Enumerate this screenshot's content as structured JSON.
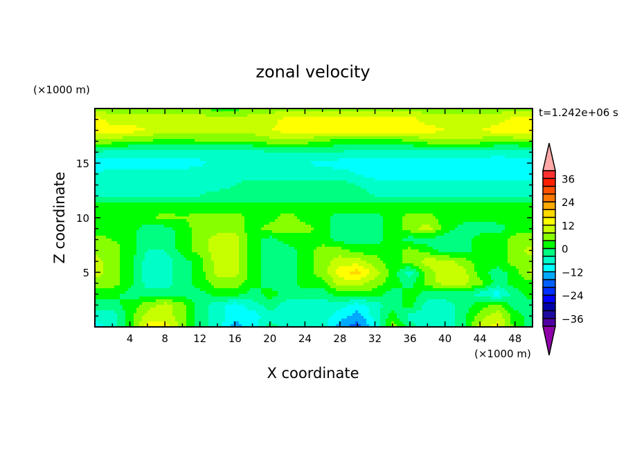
{
  "chart_data": {
    "type": "heatmap",
    "title": "zonal velocity",
    "xlabel": "X coordinate",
    "ylabel": "Z coordinate",
    "x_unit": "(×1000 m)",
    "y_unit": "(×1000 m)",
    "time_label": "t=1.242e+06 s",
    "xlim": [
      0,
      50
    ],
    "ylim": [
      0,
      20
    ],
    "x_ticks": [
      4,
      8,
      12,
      16,
      20,
      24,
      28,
      32,
      36,
      40,
      44,
      48
    ],
    "y_ticks": [
      5,
      10,
      15
    ],
    "x_minor_step": 2,
    "y_minor_step": 1,
    "colorbar": {
      "levels_min": -40,
      "levels_max": 40,
      "level_step": 4,
      "tick_labels": [
        "36",
        "24",
        "12",
        "0",
        "−12",
        "−24",
        "−36"
      ],
      "tick_values": [
        36,
        24,
        12,
        0,
        -12,
        -24,
        -36
      ],
      "colors_low_to_high": [
        "#5000a0",
        "#1e0aa0",
        "#0000a8",
        "#0000ff",
        "#0030ff",
        "#0060ff",
        "#00a8ff",
        "#00ffff",
        "#00ffc8",
        "#00ff80",
        "#00ff00",
        "#88ff00",
        "#c8ff00",
        "#ffff00",
        "#ffd800",
        "#ffa800",
        "#ff7800",
        "#ff5000",
        "#ff2000",
        "#ff3030"
      ],
      "over_color": "#ffa8a8",
      "under_color": "#9000a8"
    },
    "x": [
      0,
      2,
      4,
      6,
      8,
      10,
      12,
      14,
      16,
      18,
      20,
      22,
      24,
      26,
      28,
      30,
      32,
      34,
      36,
      38,
      40,
      42,
      44,
      46,
      48,
      50
    ],
    "z": [
      20,
      19,
      18,
      17,
      16,
      15,
      14,
      13,
      12,
      11,
      10,
      9,
      8,
      7,
      6,
      5,
      4,
      3,
      2,
      1,
      0
    ],
    "values": [
      [
        6,
        6,
        6,
        6,
        6,
        6,
        6,
        2,
        2,
        6,
        6,
        6,
        6,
        6,
        6,
        6,
        6,
        6,
        6,
        6,
        6,
        6,
        6,
        6,
        6,
        6
      ],
      [
        14,
        10,
        10,
        10,
        10,
        10,
        10,
        10,
        10,
        10,
        10,
        14,
        14,
        14,
        14,
        14,
        14,
        14,
        14,
        10,
        10,
        10,
        10,
        10,
        14,
        14
      ],
      [
        14,
        14,
        14,
        12,
        10,
        10,
        10,
        10,
        10,
        10,
        12,
        14,
        14,
        14,
        14,
        14,
        14,
        14,
        14,
        14,
        12,
        12,
        12,
        14,
        16,
        14
      ],
      [
        6,
        6,
        4,
        4,
        2,
        2,
        4,
        4,
        4,
        4,
        6,
        6,
        6,
        4,
        2,
        2,
        2,
        2,
        4,
        6,
        6,
        6,
        6,
        4,
        4,
        6
      ],
      [
        -4,
        -6,
        -6,
        -6,
        -6,
        -6,
        -6,
        -6,
        -6,
        -6,
        -4,
        -4,
        -4,
        -4,
        -4,
        -6,
        -6,
        -6,
        -6,
        -6,
        -6,
        -6,
        -6,
        -6,
        -6,
        -6
      ],
      [
        -10,
        -10,
        -10,
        -10,
        -10,
        -10,
        -9,
        -6,
        -6,
        -6,
        -6,
        -6,
        -8,
        -9,
        -10,
        -10,
        -10,
        -10,
        -10,
        -10,
        -10,
        -10,
        -10,
        -11,
        -10,
        -10
      ],
      [
        -8,
        -6,
        -6,
        -6,
        -6,
        -6,
        -6,
        -6,
        -6,
        -6,
        -6,
        -6,
        -6,
        -6,
        -6,
        -8,
        -10,
        -10,
        -10,
        -10,
        -10,
        -10,
        -10,
        -10,
        -10,
        -10
      ],
      [
        -6,
        -6,
        -6,
        -6,
        -6,
        -6,
        -6,
        -6,
        -4,
        -2,
        -2,
        -2,
        -2,
        -2,
        -2,
        -4,
        -6,
        -6,
        -6,
        -6,
        -6,
        -6,
        -6,
        -6,
        -6,
        -6
      ],
      [
        -4,
        -4,
        -4,
        -4,
        -4,
        -4,
        -4,
        -2,
        -2,
        -2,
        -2,
        -2,
        -2,
        -2,
        -2,
        -2,
        -4,
        -4,
        -4,
        -4,
        -4,
        -4,
        -4,
        -4,
        -4,
        -4
      ],
      [
        2,
        2,
        2,
        2,
        2,
        2,
        2,
        2,
        2,
        2,
        2,
        2,
        2,
        2,
        2,
        2,
        2,
        2,
        2,
        2,
        2,
        2,
        2,
        2,
        2,
        2
      ],
      [
        2,
        2,
        2,
        2,
        6,
        4,
        6,
        6,
        6,
        2,
        2,
        6,
        2,
        2,
        -2,
        -2,
        -2,
        2,
        6,
        6,
        2,
        2,
        2,
        2,
        2,
        2
      ],
      [
        2,
        2,
        2,
        -2,
        -2,
        2,
        6,
        6,
        6,
        2,
        6,
        6,
        6,
        2,
        -2,
        -2,
        -2,
        2,
        6,
        10,
        2,
        -2,
        -2,
        -2,
        2,
        2
      ],
      [
        6,
        4,
        2,
        -4,
        -4,
        2,
        6,
        10,
        10,
        2,
        -2,
        2,
        2,
        2,
        -2,
        -2,
        -2,
        2,
        -2,
        -2,
        -2,
        -2,
        2,
        2,
        6,
        6
      ],
      [
        6,
        6,
        2,
        -4,
        -4,
        2,
        6,
        10,
        10,
        2,
        -2,
        -2,
        2,
        6,
        6,
        2,
        2,
        2,
        6,
        2,
        -2,
        -2,
        2,
        2,
        6,
        10
      ],
      [
        10,
        6,
        2,
        -6,
        -6,
        -2,
        2,
        10,
        10,
        2,
        -2,
        -2,
        2,
        6,
        10,
        10,
        6,
        2,
        6,
        10,
        10,
        6,
        2,
        2,
        6,
        6
      ],
      [
        10,
        6,
        2,
        -6,
        -6,
        -2,
        2,
        10,
        10,
        2,
        -2,
        -2,
        2,
        6,
        14,
        18,
        10,
        2,
        -6,
        6,
        10,
        10,
        2,
        -2,
        2,
        10
      ],
      [
        6,
        6,
        2,
        -6,
        -6,
        -2,
        2,
        6,
        6,
        2,
        -2,
        -2,
        2,
        2,
        10,
        10,
        6,
        2,
        -2,
        6,
        10,
        10,
        6,
        -2,
        2,
        2
      ],
      [
        2,
        2,
        -2,
        -2,
        -2,
        -2,
        -2,
        2,
        2,
        -2,
        2,
        -2,
        -2,
        -2,
        2,
        2,
        2,
        -2,
        2,
        -2,
        -2,
        -2,
        -6,
        -10,
        -2,
        2
      ],
      [
        -2,
        -2,
        2,
        6,
        10,
        6,
        -2,
        -6,
        -10,
        -6,
        -2,
        -6,
        -6,
        -6,
        -6,
        -10,
        -6,
        -2,
        2,
        -6,
        -6,
        -2,
        2,
        6,
        -2,
        -2
      ],
      [
        -6,
        -6,
        2,
        10,
        10,
        6,
        -2,
        -6,
        -10,
        -10,
        -6,
        -6,
        -6,
        -6,
        -10,
        -14,
        -6,
        2,
        -6,
        -6,
        -6,
        -2,
        6,
        10,
        2,
        -2
      ],
      [
        -10,
        -6,
        2,
        14,
        14,
        6,
        -2,
        -6,
        -14,
        -10,
        -2,
        -6,
        -6,
        -6,
        -14,
        -18,
        -10,
        6,
        -2,
        -6,
        -6,
        -2,
        10,
        14,
        2,
        -2
      ]
    ]
  }
}
